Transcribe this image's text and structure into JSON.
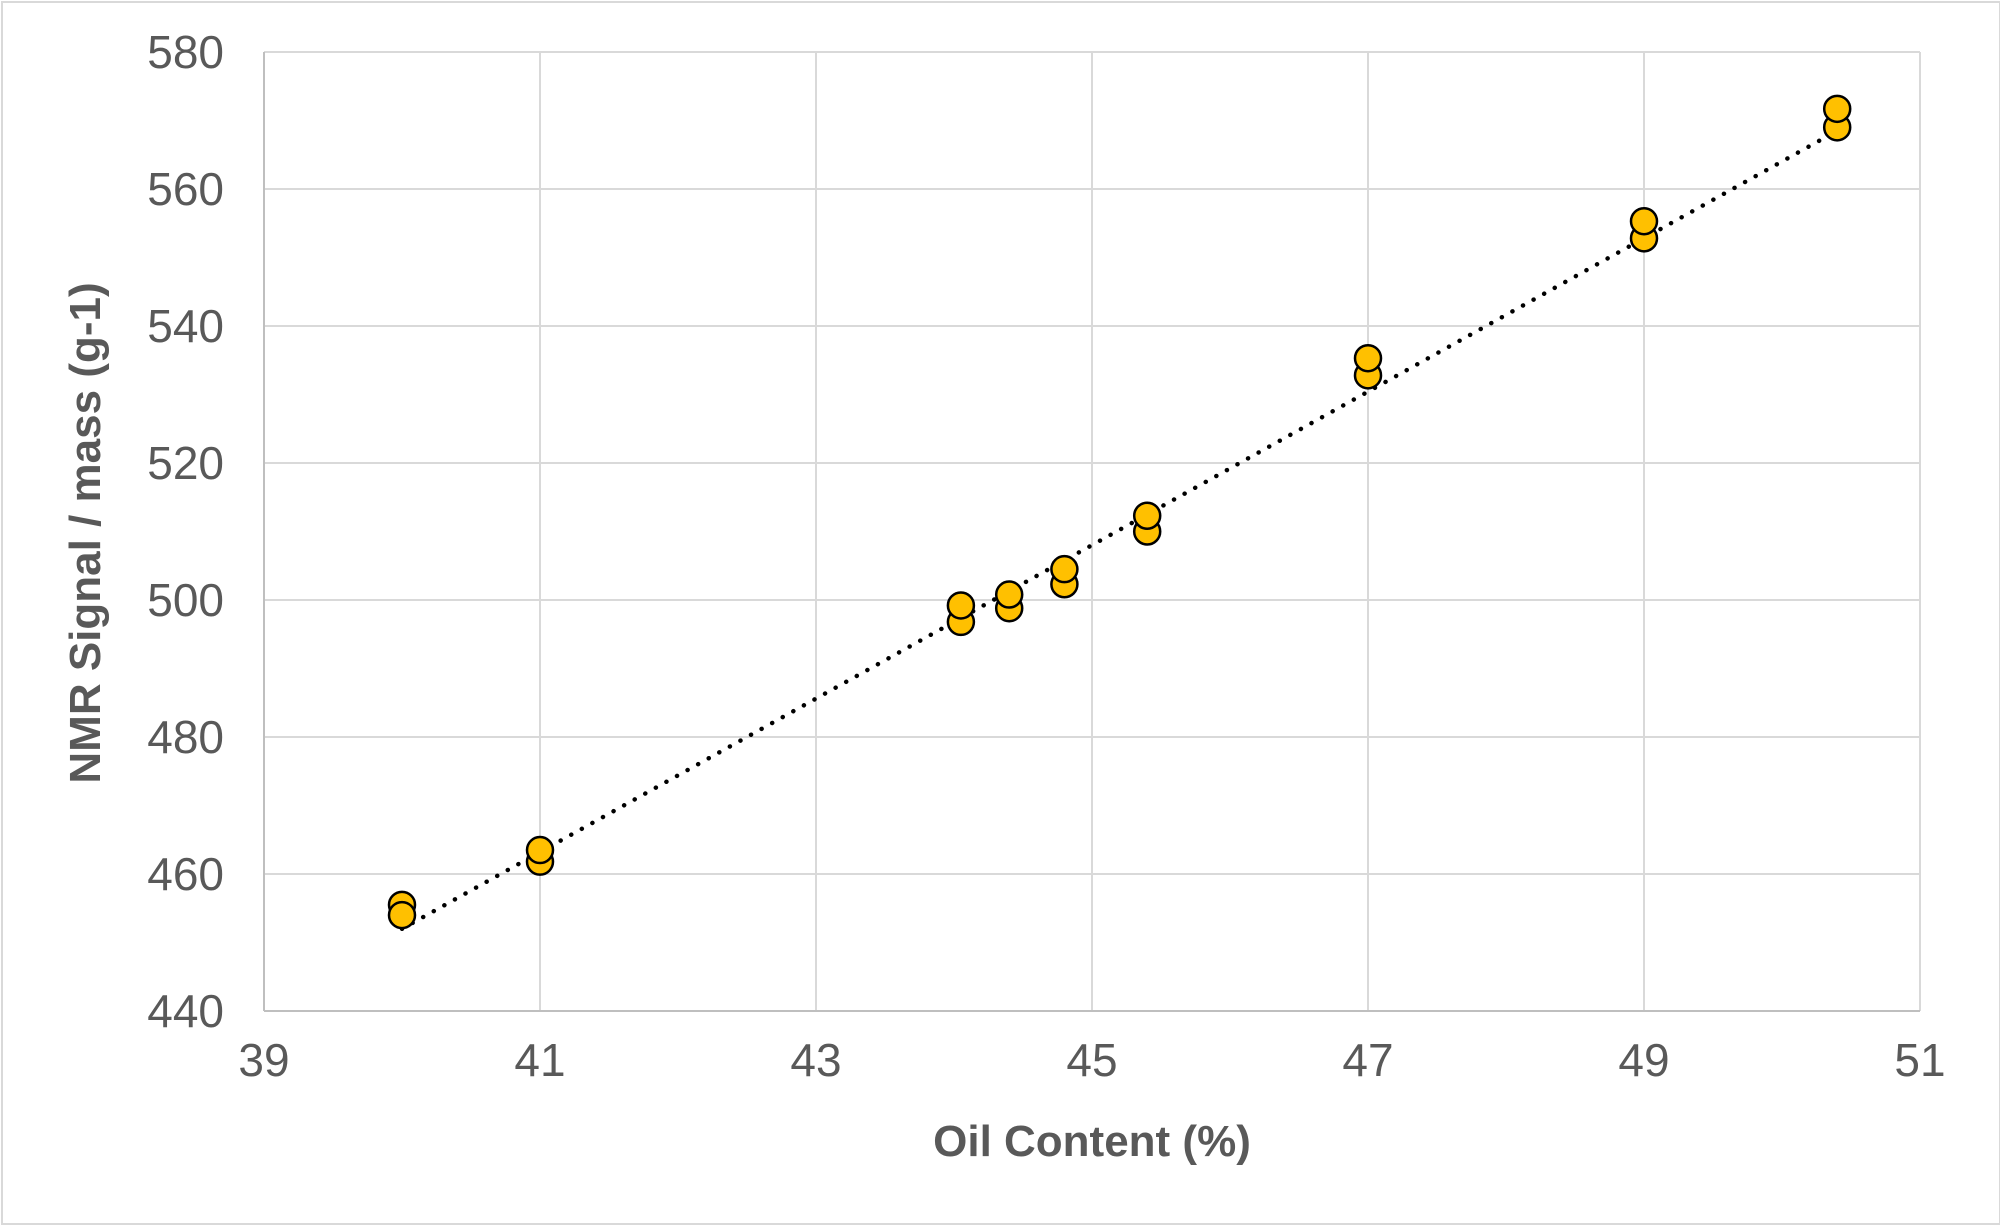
{
  "chart_data": {
    "type": "scatter",
    "title": "",
    "xlabel": "Oil Content (%)",
    "ylabel": "NMR Signal / mass (g-1)",
    "xlim": [
      39,
      51
    ],
    "ylim": [
      440,
      580
    ],
    "xticks": [
      39,
      41,
      43,
      45,
      47,
      49,
      51
    ],
    "yticks": [
      440,
      460,
      480,
      500,
      520,
      540,
      560,
      580
    ],
    "grid": true,
    "legend": "none",
    "marker_color": "#FFC000",
    "marker_edge_color": "#000000",
    "trendline": {
      "type": "linear",
      "style": "dotted",
      "color": "#000000",
      "x": [
        40.0,
        50.4
      ],
      "y": [
        452.0,
        568.5
      ]
    },
    "series": [
      {
        "points": [
          [
            40.0,
            455.5
          ],
          [
            40.0,
            454.0
          ],
          [
            41.0,
            461.8
          ],
          [
            41.0,
            463.5
          ],
          [
            44.05,
            496.8
          ],
          [
            44.05,
            499.2
          ],
          [
            44.4,
            498.8
          ],
          [
            44.4,
            500.8
          ],
          [
            44.8,
            502.3
          ],
          [
            44.8,
            504.5
          ],
          [
            45.4,
            510.0
          ],
          [
            45.4,
            512.3
          ],
          [
            47.0,
            532.8
          ],
          [
            47.0,
            535.3
          ],
          [
            49.0,
            552.8
          ],
          [
            49.0,
            555.3
          ],
          [
            50.4,
            569.0
          ],
          [
            50.4,
            571.7
          ]
        ]
      }
    ]
  }
}
